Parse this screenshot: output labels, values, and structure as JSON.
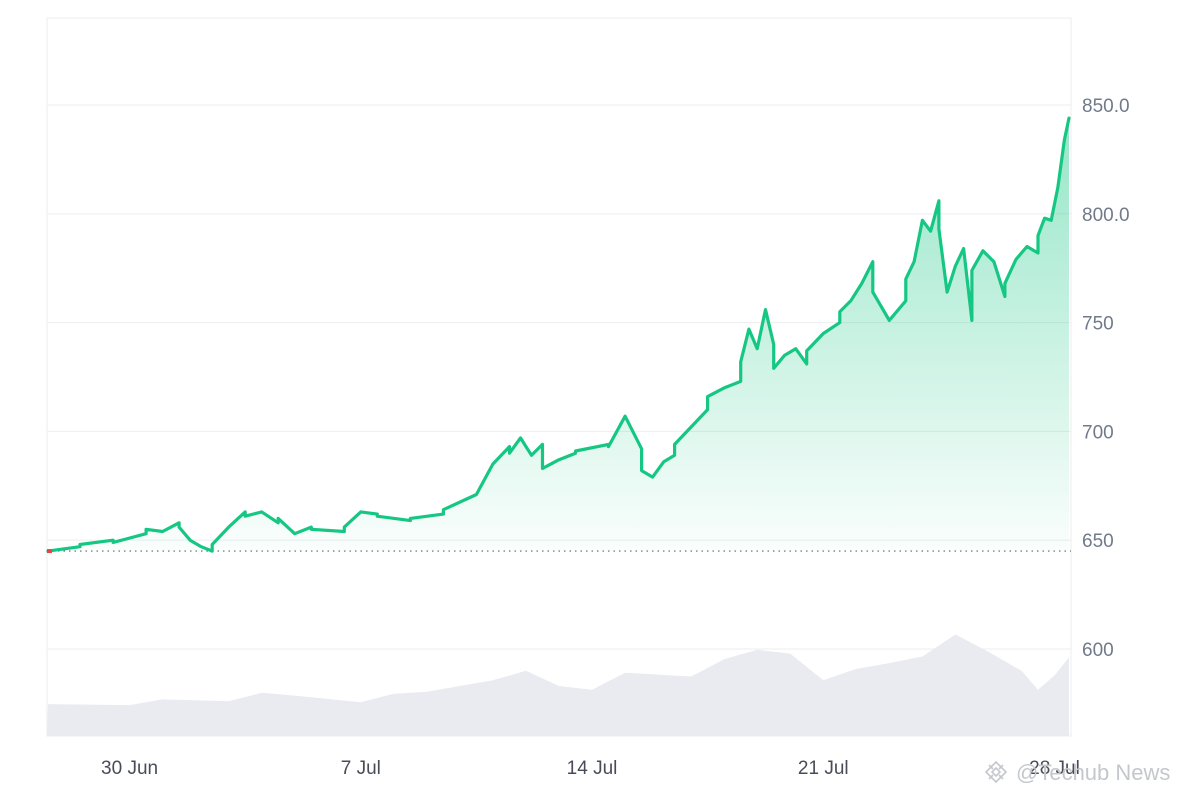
{
  "watermark": {
    "text": "@Techub News"
  },
  "colors": {
    "line": "#16c784",
    "start_marker": "#e04848",
    "grid": "#eceef1",
    "volume": "#e9ebf0"
  },
  "chart_data": {
    "type": "area",
    "title": "",
    "xlabel": "",
    "ylabel": "",
    "ylim": [
      560,
      890
    ],
    "x_range": [
      "2025-06-28",
      "2025-07-28"
    ],
    "y_ticks": [
      {
        "value": 600,
        "label": "600"
      },
      {
        "value": 650,
        "label": "650"
      },
      {
        "value": 700,
        "label": "700"
      },
      {
        "value": 750,
        "label": "750"
      },
      {
        "value": 800,
        "label": "800.0"
      },
      {
        "value": 850,
        "label": "850.0"
      }
    ],
    "x_ticks": [
      {
        "date": "2025-06-30",
        "label": "30 Jun"
      },
      {
        "date": "2025-07-07",
        "label": "7 Jul"
      },
      {
        "date": "2025-07-14",
        "label": "14 Jul"
      },
      {
        "date": "2025-07-21",
        "label": "21 Jul"
      },
      {
        "date": "2025-07-28",
        "label": "28 Jul"
      }
    ],
    "baseline": 645,
    "grid": true,
    "series": [
      {
        "values": [
          [
            "2025-06-28",
            645
          ],
          [
            "2025-06-28",
            647
          ],
          [
            "2025-06-29",
            648
          ],
          [
            "2025-06-29",
            650
          ],
          [
            "2025-06-30",
            649
          ],
          [
            "2025-06-30",
            653
          ],
          [
            "2025-07-01",
            655
          ],
          [
            "2025-07-01",
            654
          ],
          [
            "2025-07-01",
            658
          ],
          [
            "2025-07-02",
            656
          ],
          [
            "2025-07-02",
            650
          ],
          [
            "2025-07-02",
            647
          ],
          [
            "2025-07-02",
            645
          ],
          [
            "2025-07-03",
            648
          ],
          [
            "2025-07-03",
            656
          ],
          [
            "2025-07-03",
            663
          ],
          [
            "2025-07-04",
            661
          ],
          [
            "2025-07-04",
            663
          ],
          [
            "2025-07-04",
            658
          ],
          [
            "2025-07-05",
            660
          ],
          [
            "2025-07-05",
            653
          ],
          [
            "2025-07-05",
            656
          ],
          [
            "2025-07-06",
            655
          ],
          [
            "2025-07-06",
            654
          ],
          [
            "2025-07-07",
            656
          ],
          [
            "2025-07-07",
            663
          ],
          [
            "2025-07-07",
            662
          ],
          [
            "2025-07-08",
            661
          ],
          [
            "2025-07-08",
            659
          ],
          [
            "2025-07-09",
            660
          ],
          [
            "2025-07-09",
            662
          ],
          [
            "2025-07-10",
            664
          ],
          [
            "2025-07-10",
            671
          ],
          [
            "2025-07-11",
            671
          ],
          [
            "2025-07-11",
            685
          ],
          [
            "2025-07-11",
            693
          ],
          [
            "2025-07-12",
            690
          ],
          [
            "2025-07-12",
            697
          ],
          [
            "2025-07-12",
            689
          ],
          [
            "2025-07-12",
            694
          ],
          [
            "2025-07-13",
            683
          ],
          [
            "2025-07-13",
            687
          ],
          [
            "2025-07-13",
            690
          ],
          [
            "2025-07-14",
            691
          ],
          [
            "2025-07-14",
            694
          ],
          [
            "2025-07-15",
            693
          ],
          [
            "2025-07-15",
            707
          ],
          [
            "2025-07-15",
            692
          ],
          [
            "2025-07-16",
            682
          ],
          [
            "2025-07-16",
            679
          ],
          [
            "2025-07-16",
            686
          ],
          [
            "2025-07-16",
            689
          ],
          [
            "2025-07-17",
            694
          ],
          [
            "2025-07-17",
            702
          ],
          [
            "2025-07-17",
            710
          ],
          [
            "2025-07-18",
            716
          ],
          [
            "2025-07-18",
            720
          ],
          [
            "2025-07-18",
            723
          ],
          [
            "2025-07-19",
            732
          ],
          [
            "2025-07-19",
            747
          ],
          [
            "2025-07-19",
            738
          ],
          [
            "2025-07-19",
            756
          ],
          [
            "2025-07-19",
            740
          ],
          [
            "2025-07-20",
            729
          ],
          [
            "2025-07-20",
            735
          ],
          [
            "2025-07-20",
            738
          ],
          [
            "2025-07-20",
            731
          ],
          [
            "2025-07-21",
            737
          ],
          [
            "2025-07-21",
            745
          ],
          [
            "2025-07-21",
            750
          ],
          [
            "2025-07-22",
            755
          ],
          [
            "2025-07-22",
            760
          ],
          [
            "2025-07-22",
            768
          ],
          [
            "2025-07-22",
            778
          ],
          [
            "2025-07-23",
            764
          ],
          [
            "2025-07-23",
            751
          ],
          [
            "2025-07-23",
            760
          ],
          [
            "2025-07-24",
            770
          ],
          [
            "2025-07-24",
            778
          ],
          [
            "2025-07-24",
            797
          ],
          [
            "2025-07-24",
            792
          ],
          [
            "2025-07-24",
            806
          ],
          [
            "2025-07-25",
            793
          ],
          [
            "2025-07-25",
            764
          ],
          [
            "2025-07-25",
            776
          ],
          [
            "2025-07-25",
            784
          ],
          [
            "2025-07-25",
            751
          ],
          [
            "2025-07-26",
            774
          ],
          [
            "2025-07-26",
            783
          ],
          [
            "2025-07-26",
            778
          ],
          [
            "2025-07-26",
            762
          ],
          [
            "2025-07-27",
            768
          ],
          [
            "2025-07-27",
            779
          ],
          [
            "2025-07-27",
            785
          ],
          [
            "2025-07-27",
            782
          ],
          [
            "2025-07-28",
            790
          ],
          [
            "2025-07-28",
            798
          ],
          [
            "2025-07-28",
            797
          ],
          [
            "2025-07-28",
            812
          ],
          [
            "2025-07-28",
            834
          ],
          [
            "2025-07-28",
            844
          ]
        ]
      }
    ],
    "volume": [
      [
        "2025-06-28",
        25
      ],
      [
        "2025-06-30",
        24
      ],
      [
        "2025-07-01",
        30
      ],
      [
        "2025-07-03",
        28
      ],
      [
        "2025-07-04",
        37
      ],
      [
        "2025-07-05",
        34
      ],
      [
        "2025-07-07",
        27
      ],
      [
        "2025-07-08",
        36
      ],
      [
        "2025-07-09",
        38
      ],
      [
        "2025-07-10",
        44
      ],
      [
        "2025-07-11",
        50
      ],
      [
        "2025-07-12",
        60
      ],
      [
        "2025-07-13",
        44
      ],
      [
        "2025-07-14",
        40
      ],
      [
        "2025-07-15",
        58
      ],
      [
        "2025-07-16",
        56
      ],
      [
        "2025-07-17",
        54
      ],
      [
        "2025-07-18",
        72
      ],
      [
        "2025-07-19",
        82
      ],
      [
        "2025-07-20",
        78
      ],
      [
        "2025-07-21",
        50
      ],
      [
        "2025-07-22",
        62
      ],
      [
        "2025-07-23",
        68
      ],
      [
        "2025-07-24",
        75
      ],
      [
        "2025-07-25",
        98
      ],
      [
        "2025-07-26",
        80
      ],
      [
        "2025-07-27",
        60
      ],
      [
        "2025-07-28",
        40
      ],
      [
        "2025-07-28",
        55
      ],
      [
        "2025-07-28",
        74
      ]
    ]
  }
}
